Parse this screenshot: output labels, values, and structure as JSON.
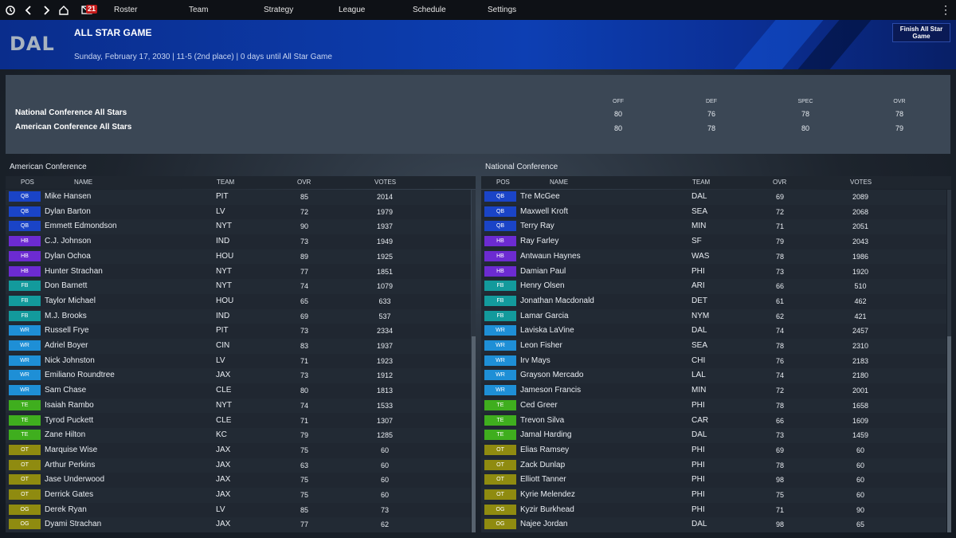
{
  "nav": {
    "mail_count": "21",
    "items": [
      "Roster",
      "Team",
      "Strategy",
      "League",
      "Schedule",
      "Settings"
    ]
  },
  "header": {
    "team_abbr": "DAL",
    "title": "ALL STAR GAME",
    "subtitle": "Sunday, February 17, 2030 | 11-5 (2nd place) | 0 days until All Star Game",
    "finish_button": "Finish All Star Game"
  },
  "summary": {
    "columns": [
      "OFF",
      "DEF",
      "SPEC",
      "OVR"
    ],
    "teams": [
      {
        "name": "National Conference All Stars",
        "off": "80",
        "def": "76",
        "spec": "78",
        "ovr": "78"
      },
      {
        "name": "American Conference All Stars",
        "off": "80",
        "def": "78",
        "spec": "80",
        "ovr": "79"
      }
    ]
  },
  "colors": {
    "QB": "#1a44c7",
    "HB": "#6c2bd1",
    "FB": "#139a9c",
    "WR": "#1e8fd6",
    "TE": "#3fae1e",
    "OT": "#8f8b10",
    "OG": "#8f8b10"
  },
  "columns": {
    "pos": "POS",
    "name": "NAME",
    "team": "TEAM",
    "ovr": "OVR",
    "votes": "VOTES"
  },
  "american": {
    "title": "American Conference",
    "players": [
      {
        "pos": "QB",
        "name": "Mike Hansen",
        "team": "PIT",
        "ovr": "85",
        "votes": "2014"
      },
      {
        "pos": "QB",
        "name": "Dylan Barton",
        "team": "LV",
        "ovr": "72",
        "votes": "1979"
      },
      {
        "pos": "QB",
        "name": "Emmett Edmondson",
        "team": "NYT",
        "ovr": "90",
        "votes": "1937"
      },
      {
        "pos": "HB",
        "name": "C.J. Johnson",
        "team": "IND",
        "ovr": "73",
        "votes": "1949"
      },
      {
        "pos": "HB",
        "name": "Dylan Ochoa",
        "team": "HOU",
        "ovr": "89",
        "votes": "1925"
      },
      {
        "pos": "HB",
        "name": "Hunter Strachan",
        "team": "NYT",
        "ovr": "77",
        "votes": "1851"
      },
      {
        "pos": "FB",
        "name": "Don Barnett",
        "team": "NYT",
        "ovr": "74",
        "votes": "1079"
      },
      {
        "pos": "FB",
        "name": "Taylor Michael",
        "team": "HOU",
        "ovr": "65",
        "votes": "633"
      },
      {
        "pos": "FB",
        "name": "M.J. Brooks",
        "team": "IND",
        "ovr": "69",
        "votes": "537"
      },
      {
        "pos": "WR",
        "name": "Russell Frye",
        "team": "PIT",
        "ovr": "73",
        "votes": "2334"
      },
      {
        "pos": "WR",
        "name": "Adriel Boyer",
        "team": "CIN",
        "ovr": "83",
        "votes": "1937"
      },
      {
        "pos": "WR",
        "name": "Nick Johnston",
        "team": "LV",
        "ovr": "71",
        "votes": "1923"
      },
      {
        "pos": "WR",
        "name": "Emiliano Roundtree",
        "team": "JAX",
        "ovr": "73",
        "votes": "1912"
      },
      {
        "pos": "WR",
        "name": "Sam Chase",
        "team": "CLE",
        "ovr": "80",
        "votes": "1813"
      },
      {
        "pos": "TE",
        "name": "Isaiah Rambo",
        "team": "NYT",
        "ovr": "74",
        "votes": "1533"
      },
      {
        "pos": "TE",
        "name": "Tyrod Puckett",
        "team": "CLE",
        "ovr": "71",
        "votes": "1307"
      },
      {
        "pos": "TE",
        "name": "Zane Hilton",
        "team": "KC",
        "ovr": "79",
        "votes": "1285"
      },
      {
        "pos": "OT",
        "name": "Marquise Wise",
        "team": "JAX",
        "ovr": "75",
        "votes": "60"
      },
      {
        "pos": "OT",
        "name": "Arthur Perkins",
        "team": "JAX",
        "ovr": "63",
        "votes": "60"
      },
      {
        "pos": "OT",
        "name": "Jase Underwood",
        "team": "JAX",
        "ovr": "75",
        "votes": "60"
      },
      {
        "pos": "OT",
        "name": "Derrick Gates",
        "team": "JAX",
        "ovr": "75",
        "votes": "60"
      },
      {
        "pos": "OG",
        "name": "Derek Ryan",
        "team": "LV",
        "ovr": "85",
        "votes": "73"
      },
      {
        "pos": "OG",
        "name": "Dyami Strachan",
        "team": "JAX",
        "ovr": "77",
        "votes": "62"
      }
    ]
  },
  "national": {
    "title": "National Conference",
    "players": [
      {
        "pos": "QB",
        "name": "Tre McGee",
        "team": "DAL",
        "ovr": "69",
        "votes": "2089"
      },
      {
        "pos": "QB",
        "name": "Maxwell Kroft",
        "team": "SEA",
        "ovr": "72",
        "votes": "2068"
      },
      {
        "pos": "QB",
        "name": "Terry Ray",
        "team": "MIN",
        "ovr": "71",
        "votes": "2051"
      },
      {
        "pos": "HB",
        "name": "Ray Farley",
        "team": "SF",
        "ovr": "79",
        "votes": "2043"
      },
      {
        "pos": "HB",
        "name": "Antwaun Haynes",
        "team": "WAS",
        "ovr": "78",
        "votes": "1986"
      },
      {
        "pos": "HB",
        "name": "Damian Paul",
        "team": "PHI",
        "ovr": "73",
        "votes": "1920"
      },
      {
        "pos": "FB",
        "name": "Henry Olsen",
        "team": "ARI",
        "ovr": "66",
        "votes": "510"
      },
      {
        "pos": "FB",
        "name": "Jonathan Macdonald",
        "team": "DET",
        "ovr": "61",
        "votes": "462"
      },
      {
        "pos": "FB",
        "name": "Lamar Garcia",
        "team": "NYM",
        "ovr": "62",
        "votes": "421"
      },
      {
        "pos": "WR",
        "name": "Laviska LaVine",
        "team": "DAL",
        "ovr": "74",
        "votes": "2457"
      },
      {
        "pos": "WR",
        "name": "Leon Fisher",
        "team": "SEA",
        "ovr": "78",
        "votes": "2310"
      },
      {
        "pos": "WR",
        "name": "Irv Mays",
        "team": "CHI",
        "ovr": "76",
        "votes": "2183"
      },
      {
        "pos": "WR",
        "name": "Grayson Mercado",
        "team": "LAL",
        "ovr": "74",
        "votes": "2180"
      },
      {
        "pos": "WR",
        "name": "Jameson Francis",
        "team": "MIN",
        "ovr": "72",
        "votes": "2001"
      },
      {
        "pos": "TE",
        "name": "Ced Greer",
        "team": "PHI",
        "ovr": "78",
        "votes": "1658"
      },
      {
        "pos": "TE",
        "name": "Trevon Silva",
        "team": "CAR",
        "ovr": "66",
        "votes": "1609"
      },
      {
        "pos": "TE",
        "name": "Jamal Harding",
        "team": "DAL",
        "ovr": "73",
        "votes": "1459"
      },
      {
        "pos": "OT",
        "name": "Elias Ramsey",
        "team": "PHI",
        "ovr": "69",
        "votes": "60"
      },
      {
        "pos": "OT",
        "name": "Zack Dunlap",
        "team": "PHI",
        "ovr": "78",
        "votes": "60"
      },
      {
        "pos": "OT",
        "name": "Elliott Tanner",
        "team": "PHI",
        "ovr": "98",
        "votes": "60"
      },
      {
        "pos": "OT",
        "name": "Kyrie Melendez",
        "team": "PHI",
        "ovr": "75",
        "votes": "60"
      },
      {
        "pos": "OG",
        "name": "Kyzir Burkhead",
        "team": "PHI",
        "ovr": "71",
        "votes": "90"
      },
      {
        "pos": "OG",
        "name": "Najee Jordan",
        "team": "DAL",
        "ovr": "98",
        "votes": "65"
      }
    ]
  }
}
